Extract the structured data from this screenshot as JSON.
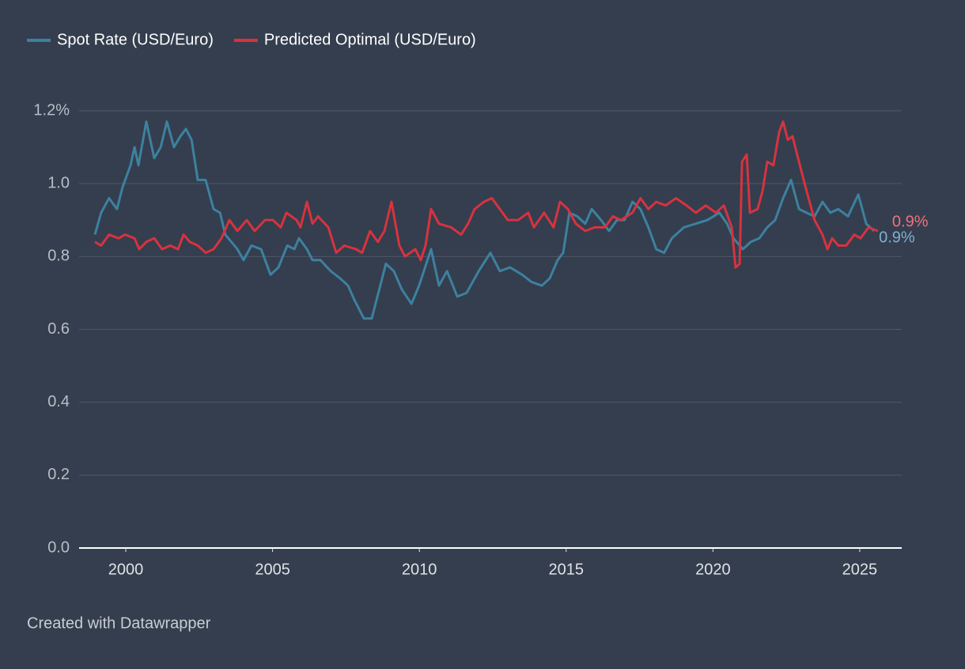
{
  "chart_data": {
    "type": "line",
    "footer": "Created with Datawrapper",
    "legend": "top-left",
    "grid": true,
    "xlim": [
      1998.41,
      2026.43
    ],
    "xticks": [
      2000,
      2005,
      2010,
      2015,
      2020,
      2025
    ],
    "ylim": [
      0,
      1.2
    ],
    "yticks": [
      {
        "value": 0,
        "label": "0.0"
      },
      0.2,
      0.4,
      0.6,
      0.8,
      {
        "value": 1,
        "label": "1.0"
      },
      {
        "value": 1.2,
        "label": "1.2%"
      }
    ],
    "series": [
      {
        "name": "Spot Rate (USD/Euro)",
        "color": "#3d819f",
        "label_color": "#7eb0d2",
        "end_label": "0.9%",
        "x": [
          1998.95,
          1999.16,
          1999.43,
          1999.7,
          1999.89,
          2000.16,
          2000.3,
          2000.43,
          2000.7,
          2000.97,
          2001.19,
          2001.4,
          2001.64,
          2001.86,
          2002.05,
          2002.24,
          2002.45,
          2002.72,
          2002.99,
          2003.21,
          2003.39,
          2003.8,
          2004.01,
          2004.28,
          2004.61,
          2004.93,
          2005.2,
          2005.5,
          2005.74,
          2005.9,
          2006.17,
          2006.36,
          2006.63,
          2006.98,
          2007.3,
          2007.57,
          2007.79,
          2008.11,
          2008.38,
          2008.86,
          2009.13,
          2009.4,
          2009.73,
          2009.99,
          2010.4,
          2010.67,
          2010.94,
          2011.29,
          2011.61,
          2012.02,
          2012.42,
          2012.74,
          2013.09,
          2013.5,
          2013.82,
          2014.17,
          2014.44,
          2014.71,
          2014.9,
          2015.11,
          2015.38,
          2015.65,
          2015.87,
          2016.19,
          2016.46,
          2016.73,
          2016.99,
          2017.26,
          2017.53,
          2017.8,
          2018.07,
          2018.34,
          2018.6,
          2019.01,
          2019.41,
          2019.81,
          2020.22,
          2020.48,
          2020.7,
          2021.02,
          2021.29,
          2021.58,
          2021.85,
          2022.12,
          2022.39,
          2022.66,
          2022.93,
          2023.19,
          2023.46,
          2023.73,
          2024.0,
          2024.27,
          2024.6,
          2024.95,
          2025.22,
          2025.49
        ],
        "values": [
          0.86,
          0.92,
          0.96,
          0.93,
          0.99,
          1.05,
          1.1,
          1.05,
          1.17,
          1.07,
          1.1,
          1.17,
          1.1,
          1.13,
          1.15,
          1.12,
          1.01,
          1.01,
          0.93,
          0.92,
          0.86,
          0.82,
          0.79,
          0.83,
          0.82,
          0.75,
          0.77,
          0.83,
          0.82,
          0.85,
          0.82,
          0.79,
          0.79,
          0.76,
          0.74,
          0.72,
          0.68,
          0.63,
          0.63,
          0.78,
          0.76,
          0.71,
          0.67,
          0.72,
          0.82,
          0.72,
          0.76,
          0.69,
          0.7,
          0.76,
          0.81,
          0.76,
          0.77,
          0.75,
          0.73,
          0.72,
          0.74,
          0.79,
          0.81,
          0.92,
          0.91,
          0.89,
          0.93,
          0.9,
          0.87,
          0.9,
          0.9,
          0.95,
          0.93,
          0.88,
          0.82,
          0.81,
          0.85,
          0.88,
          0.89,
          0.9,
          0.92,
          0.89,
          0.85,
          0.82,
          0.84,
          0.85,
          0.88,
          0.9,
          0.96,
          1.01,
          0.93,
          0.92,
          0.91,
          0.95,
          0.92,
          0.93,
          0.91,
          0.97,
          0.89,
          0.87
        ]
      },
      {
        "name": "Predicted Optimal (USD/Euro)",
        "color": "#d8323f",
        "label_color": "#f2727a",
        "end_label": "0.9%",
        "x": [
          1998.95,
          1999.16,
          1999.43,
          1999.76,
          1999.97,
          2000.3,
          2000.46,
          2000.7,
          2000.97,
          2001.24,
          2001.51,
          2001.78,
          2001.97,
          2002.18,
          2002.45,
          2002.72,
          2002.99,
          2003.26,
          2003.53,
          2003.8,
          2004.12,
          2004.39,
          2004.74,
          2005.01,
          2005.28,
          2005.47,
          2005.82,
          2005.95,
          2006.17,
          2006.36,
          2006.55,
          2006.9,
          2007.17,
          2007.44,
          2007.84,
          2008.05,
          2008.32,
          2008.59,
          2008.81,
          2009.05,
          2009.32,
          2009.51,
          2009.86,
          2010.05,
          2010.21,
          2010.4,
          2010.67,
          2011.08,
          2011.42,
          2011.66,
          2011.88,
          2012.2,
          2012.47,
          2012.74,
          2013.01,
          2013.36,
          2013.71,
          2013.9,
          2014.25,
          2014.57,
          2014.79,
          2015.06,
          2015.33,
          2015.65,
          2015.97,
          2016.32,
          2016.59,
          2016.86,
          2017.26,
          2017.53,
          2017.8,
          2018.07,
          2018.39,
          2018.74,
          2019.1,
          2019.42,
          2019.75,
          2020.1,
          2020.37,
          2020.64,
          2020.77,
          2020.91,
          2020.99,
          2021.15,
          2021.26,
          2021.52,
          2021.69,
          2021.85,
          2022.06,
          2022.25,
          2022.39,
          2022.55,
          2022.71,
          2022.93,
          2023.19,
          2023.46,
          2023.73,
          2023.9,
          2024.06,
          2024.27,
          2024.54,
          2024.81,
          2025.03,
          2025.3,
          2025.62
        ],
        "values": [
          0.84,
          0.83,
          0.86,
          0.85,
          0.86,
          0.85,
          0.82,
          0.84,
          0.85,
          0.82,
          0.83,
          0.82,
          0.86,
          0.84,
          0.83,
          0.81,
          0.82,
          0.85,
          0.9,
          0.87,
          0.9,
          0.87,
          0.9,
          0.9,
          0.88,
          0.92,
          0.9,
          0.88,
          0.95,
          0.89,
          0.91,
          0.88,
          0.81,
          0.83,
          0.82,
          0.81,
          0.87,
          0.84,
          0.87,
          0.95,
          0.83,
          0.8,
          0.82,
          0.79,
          0.83,
          0.93,
          0.89,
          0.88,
          0.86,
          0.89,
          0.93,
          0.95,
          0.96,
          0.93,
          0.9,
          0.9,
          0.92,
          0.88,
          0.92,
          0.88,
          0.95,
          0.93,
          0.89,
          0.87,
          0.88,
          0.88,
          0.91,
          0.9,
          0.92,
          0.96,
          0.93,
          0.95,
          0.94,
          0.96,
          0.94,
          0.92,
          0.94,
          0.92,
          0.94,
          0.88,
          0.77,
          0.78,
          1.06,
          1.08,
          0.92,
          0.93,
          0.98,
          1.06,
          1.05,
          1.14,
          1.17,
          1.12,
          1.13,
          1.06,
          0.98,
          0.9,
          0.86,
          0.82,
          0.85,
          0.83,
          0.83,
          0.86,
          0.85,
          0.88,
          0.87
        ]
      }
    ]
  }
}
